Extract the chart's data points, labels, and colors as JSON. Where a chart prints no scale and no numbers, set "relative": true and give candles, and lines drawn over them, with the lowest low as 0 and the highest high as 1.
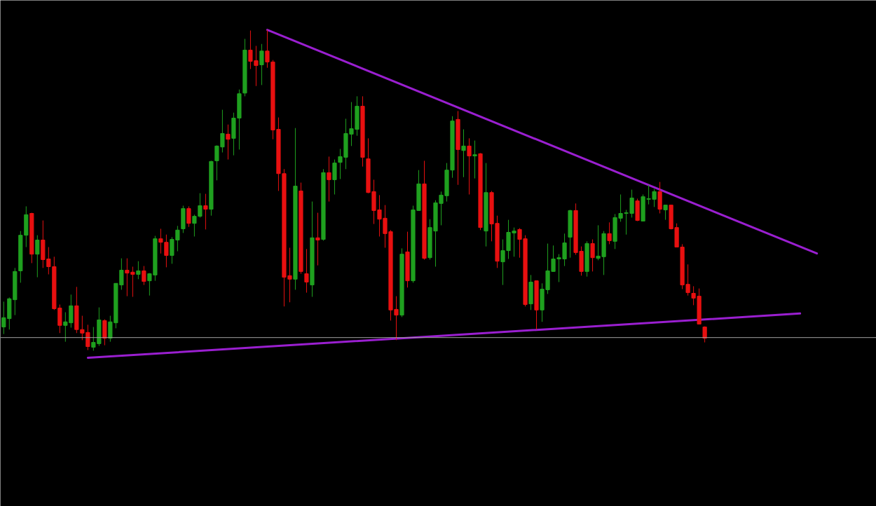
{
  "chart_data": {
    "type": "candlestick",
    "relative": true,
    "tick_labels": false,
    "categories": [
      null,
      null,
      null,
      null,
      null,
      null,
      null,
      null,
      null,
      null,
      null,
      null,
      null,
      null,
      null,
      null,
      null,
      null,
      null,
      null,
      null,
      null,
      null,
      null,
      null,
      null,
      null,
      null,
      null,
      null,
      null,
      null,
      null,
      null,
      null,
      null,
      null,
      null,
      null,
      null,
      null,
      null,
      null,
      null,
      null,
      null,
      null,
      null,
      null,
      null,
      null,
      null,
      null,
      null,
      null,
      null,
      null,
      null,
      null,
      null,
      null,
      null,
      null,
      null,
      null,
      null,
      null,
      null,
      null,
      null,
      null,
      null,
      null,
      null,
      null,
      null,
      null,
      null,
      null,
      null,
      null,
      null,
      null,
      null,
      null,
      null,
      null,
      null,
      null,
      null,
      null,
      null,
      null,
      null,
      null,
      null,
      null,
      null,
      null,
      null,
      null,
      null,
      null,
      null,
      null,
      null,
      null,
      null,
      null,
      null,
      null,
      null,
      null,
      null,
      null,
      null,
      null,
      null,
      null,
      null,
      null,
      null,
      null,
      null,
      null,
      null,
      null,
      null,
      null,
      null,
      null,
      null,
      null,
      null,
      null,
      null,
      null,
      null,
      null,
      null,
      null,
      null,
      null,
      null,
      null,
      null,
      null,
      null,
      null,
      null,
      null,
      null,
      null,
      null,
      null,
      null
    ],
    "ohlc": [
      [
        0.074,
        0.153,
        0.052,
        0.103
      ],
      [
        0.1,
        0.166,
        0.066,
        0.162
      ],
      [
        0.159,
        0.258,
        0.111,
        0.247
      ],
      [
        0.249,
        0.373,
        0.212,
        0.36
      ],
      [
        0.36,
        0.45,
        0.323,
        0.424
      ],
      [
        0.428,
        0.43,
        0.273,
        0.301
      ],
      [
        0.301,
        0.36,
        0.229,
        0.345
      ],
      [
        0.345,
        0.406,
        0.258,
        0.284
      ],
      [
        0.286,
        0.323,
        0.238,
        0.262
      ],
      [
        0.262,
        0.293,
        0.127,
        0.131
      ],
      [
        0.133,
        0.144,
        0.055,
        0.079
      ],
      [
        0.079,
        0.12,
        0.028,
        0.09
      ],
      [
        0.087,
        0.175,
        0.072,
        0.14
      ],
      [
        0.14,
        0.199,
        0.055,
        0.066
      ],
      [
        0.066,
        0.109,
        0.033,
        0.055
      ],
      [
        0.057,
        0.081,
        0.002,
        0.013
      ],
      [
        0.011,
        0.074,
        0.0,
        0.026
      ],
      [
        0.022,
        0.135,
        0.015,
        0.096
      ],
      [
        0.094,
        0.098,
        0.017,
        0.039
      ],
      [
        0.039,
        0.109,
        0.028,
        0.09
      ],
      [
        0.087,
        0.21,
        0.07,
        0.21
      ],
      [
        0.205,
        0.288,
        0.19,
        0.251
      ],
      [
        0.251,
        0.288,
        0.17,
        0.242
      ],
      [
        0.245,
        0.262,
        0.168,
        0.238
      ],
      [
        0.238,
        0.279,
        0.223,
        0.249
      ],
      [
        0.249,
        0.264,
        0.205,
        0.216
      ],
      [
        0.218,
        0.242,
        0.172,
        0.24
      ],
      [
        0.236,
        0.358,
        0.218,
        0.349
      ],
      [
        0.349,
        0.38,
        0.303,
        0.338
      ],
      [
        0.338,
        0.362,
        0.26,
        0.297
      ],
      [
        0.297,
        0.354,
        0.271,
        0.347
      ],
      [
        0.345,
        0.389,
        0.31,
        0.376
      ],
      [
        0.38,
        0.452,
        0.367,
        0.443
      ],
      [
        0.443,
        0.45,
        0.386,
        0.397
      ],
      [
        0.397,
        0.424,
        0.356,
        0.419
      ],
      [
        0.419,
        0.491,
        0.415,
        0.452
      ],
      [
        0.452,
        0.489,
        0.378,
        0.441
      ],
      [
        0.441,
        0.592,
        0.421,
        0.59
      ],
      [
        0.592,
        0.64,
        0.531,
        0.638
      ],
      [
        0.635,
        0.751,
        0.618,
        0.677
      ],
      [
        0.675,
        0.705,
        0.596,
        0.659
      ],
      [
        0.662,
        0.742,
        0.609,
        0.725
      ],
      [
        0.725,
        0.814,
        0.627,
        0.801
      ],
      [
        0.803,
        0.972,
        0.793,
        0.937
      ],
      [
        0.937,
        0.998,
        0.878,
        0.902
      ],
      [
        0.904,
        0.95,
        0.825,
        0.889
      ],
      [
        0.891,
        0.956,
        0.828,
        0.934
      ],
      [
        0.934,
        1.0,
        0.882,
        0.9
      ],
      [
        0.9,
        0.906,
        0.659,
        0.688
      ],
      [
        0.69,
        0.727,
        0.498,
        0.552
      ],
      [
        0.552,
        0.566,
        0.138,
        0.229
      ],
      [
        0.234,
        0.321,
        0.151,
        0.223
      ],
      [
        0.223,
        0.694,
        0.19,
        0.513
      ],
      [
        0.498,
        0.524,
        0.24,
        0.247
      ],
      [
        0.24,
        0.317,
        0.181,
        0.214
      ],
      [
        0.205,
        0.465,
        0.168,
        0.352
      ],
      [
        0.352,
        0.43,
        0.266,
        0.345
      ],
      [
        0.347,
        0.566,
        0.343,
        0.555
      ],
      [
        0.555,
        0.605,
        0.465,
        0.533
      ],
      [
        0.533,
        0.596,
        0.487,
        0.585
      ],
      [
        0.587,
        0.629,
        0.535,
        0.605
      ],
      [
        0.603,
        0.723,
        0.566,
        0.677
      ],
      [
        0.675,
        0.775,
        0.638,
        0.692
      ],
      [
        0.69,
        0.793,
        0.67,
        0.762
      ],
      [
        0.762,
        0.793,
        0.574,
        0.603
      ],
      [
        0.598,
        0.662,
        0.491,
        0.493
      ],
      [
        0.496,
        0.533,
        0.395,
        0.437
      ],
      [
        0.439,
        0.485,
        0.356,
        0.41
      ],
      [
        0.413,
        0.454,
        0.321,
        0.365
      ],
      [
        0.371,
        0.376,
        0.094,
        0.127
      ],
      [
        0.129,
        0.17,
        0.033,
        0.111
      ],
      [
        0.111,
        0.319,
        0.105,
        0.301
      ],
      [
        0.308,
        0.371,
        0.197,
        0.218
      ],
      [
        0.218,
        0.452,
        0.212,
        0.439
      ],
      [
        0.437,
        0.563,
        0.437,
        0.52
      ],
      [
        0.52,
        0.592,
        0.284,
        0.288
      ],
      [
        0.29,
        0.41,
        0.284,
        0.384
      ],
      [
        0.373,
        0.469,
        0.262,
        0.461
      ],
      [
        0.459,
        0.496,
        0.391,
        0.485
      ],
      [
        0.483,
        0.585,
        0.465,
        0.563
      ],
      [
        0.563,
        0.731,
        0.539,
        0.716
      ],
      [
        0.721,
        0.747,
        0.517,
        0.627
      ],
      [
        0.624,
        0.69,
        0.541,
        0.638
      ],
      [
        0.638,
        0.662,
        0.487,
        0.607
      ],
      [
        0.607,
        0.655,
        0.537,
        0.611
      ],
      [
        0.614,
        0.616,
        0.376,
        0.384
      ],
      [
        0.373,
        0.585,
        0.325,
        0.493
      ],
      [
        0.493,
        0.498,
        0.341,
        0.395
      ],
      [
        0.397,
        0.421,
        0.258,
        0.279
      ],
      [
        0.277,
        0.347,
        0.205,
        0.312
      ],
      [
        0.312,
        0.408,
        0.286,
        0.369
      ],
      [
        0.367,
        0.384,
        0.293,
        0.373
      ],
      [
        0.378,
        0.382,
        0.29,
        0.347
      ],
      [
        0.349,
        0.36,
        0.138,
        0.144
      ],
      [
        0.146,
        0.236,
        0.127,
        0.214
      ],
      [
        0.218,
        0.218,
        0.066,
        0.127
      ],
      [
        0.127,
        0.21,
        0.09,
        0.192
      ],
      [
        0.19,
        0.334,
        0.177,
        0.249
      ],
      [
        0.247,
        0.328,
        0.247,
        0.286
      ],
      [
        0.286,
        0.301,
        0.214,
        0.29
      ],
      [
        0.286,
        0.365,
        0.264,
        0.336
      ],
      [
        0.354,
        0.439,
        0.29,
        0.437
      ],
      [
        0.437,
        0.459,
        0.299,
        0.306
      ],
      [
        0.31,
        0.325,
        0.234,
        0.247
      ],
      [
        0.247,
        0.341,
        0.231,
        0.334
      ],
      [
        0.334,
        0.347,
        0.247,
        0.29
      ],
      [
        0.288,
        0.391,
        0.282,
        0.295
      ],
      [
        0.293,
        0.373,
        0.236,
        0.365
      ],
      [
        0.365,
        0.4,
        0.332,
        0.343
      ],
      [
        0.341,
        0.426,
        0.317,
        0.415
      ],
      [
        0.413,
        0.487,
        0.402,
        0.428
      ],
      [
        0.428,
        0.439,
        0.362,
        0.43
      ],
      [
        0.428,
        0.502,
        0.415,
        0.476
      ],
      [
        0.467,
        0.474,
        0.404,
        0.406
      ],
      [
        0.404,
        0.487,
        0.404,
        0.48
      ],
      [
        0.472,
        0.517,
        0.456,
        0.474
      ],
      [
        0.472,
        0.504,
        0.448,
        0.496
      ],
      [
        0.496,
        0.526,
        0.428,
        0.441
      ],
      [
        0.439,
        0.454,
        0.408,
        0.454
      ],
      [
        0.454,
        0.454,
        0.378,
        0.38
      ],
      [
        0.384,
        0.397,
        0.323,
        0.323
      ],
      [
        0.323,
        0.332,
        0.192,
        0.205
      ],
      [
        0.207,
        0.269,
        0.172,
        0.181
      ],
      [
        0.179,
        0.201,
        0.142,
        0.164
      ],
      [
        0.17,
        0.194,
        0.083,
        0.083
      ],
      [
        0.074,
        0.076,
        0.026,
        0.039
      ],
      null,
      null,
      null,
      null,
      null,
      null,
      null,
      null,
      null,
      null,
      null,
      null,
      null,
      null,
      null,
      null,
      null,
      null,
      null,
      null,
      null,
      null,
      null,
      null,
      null,
      null,
      null,
      null,
      null,
      null
    ],
    "colors": [
      "#1fa01f",
      "#1fa01f",
      "#1fa01f",
      "#1fa01f",
      "#1fa01f",
      "#e81010",
      "#1fa01f",
      "#e81010",
      "#e81010",
      "#e81010",
      "#e81010",
      "#1fa01f",
      "#1fa01f",
      "#e81010",
      "#e81010",
      "#e81010",
      "#1fa01f",
      "#1fa01f",
      "#e81010",
      "#1fa01f",
      "#1fa01f",
      "#1fa01f",
      "#e81010",
      "#e81010",
      "#1fa01f",
      "#e81010",
      "#1fa01f",
      "#1fa01f",
      "#e81010",
      "#e81010",
      "#1fa01f",
      "#1fa01f",
      "#1fa01f",
      "#e81010",
      "#1fa01f",
      "#1fa01f",
      "#e81010",
      "#1fa01f",
      "#1fa01f",
      "#1fa01f",
      "#e81010",
      "#1fa01f",
      "#1fa01f",
      "#1fa01f",
      "#e81010",
      "#e81010",
      "#1fa01f",
      "#e81010",
      "#e81010",
      "#e81010",
      "#e81010",
      "#e81010",
      "#1fa01f",
      "#e81010",
      "#e81010",
      "#1fa01f",
      "#e81010",
      "#1fa01f",
      "#e81010",
      "#1fa01f",
      "#1fa01f",
      "#1fa01f",
      "#1fa01f",
      "#1fa01f",
      "#e81010",
      "#e81010",
      "#e81010",
      "#e81010",
      "#e81010",
      "#e81010",
      "#e81010",
      "#1fa01f",
      "#e81010",
      "#1fa01f",
      "#1fa01f",
      "#e81010",
      "#1fa01f",
      "#1fa01f",
      "#1fa01f",
      "#1fa01f",
      "#1fa01f",
      "#e81010",
      "#1fa01f",
      "#e81010",
      "#1fa01f",
      "#e81010",
      "#1fa01f",
      "#e81010",
      "#e81010",
      "#1fa01f",
      "#1fa01f",
      "#1fa01f",
      "#e81010",
      "#e81010",
      "#1fa01f",
      "#e81010",
      "#1fa01f",
      "#1fa01f",
      "#1fa01f",
      "#1fa01f",
      "#1fa01f",
      "#1fa01f",
      "#e81010",
      "#e81010",
      "#1fa01f",
      "#e81010",
      "#1fa01f",
      "#1fa01f",
      "#e81010",
      "#1fa01f",
      "#1fa01f",
      "#1fa01f",
      "#1fa01f",
      "#e81010",
      "#1fa01f",
      "#1fa01f",
      "#1fa01f",
      "#e81010",
      "#1fa01f",
      "#e81010",
      "#e81010",
      "#e81010",
      "#e81010",
      "#e81010",
      "#e81010",
      "#e81010",
      null,
      null,
      null,
      null,
      null,
      null,
      null,
      null,
      null,
      null,
      null,
      null,
      null,
      null,
      null,
      null,
      null,
      null,
      null,
      null,
      null,
      null,
      null,
      null,
      null,
      null,
      null,
      null,
      null,
      null
    ],
    "series": [
      {
        "type": "line",
        "color": "#9a1fd0",
        "values": [
          null,
          null,
          null,
          null,
          null,
          null,
          null,
          null,
          null,
          null,
          null,
          null,
          null,
          null,
          null,
          null,
          null,
          null,
          null,
          null,
          null,
          null,
          null,
          null,
          null,
          null,
          null,
          null,
          null,
          null,
          null,
          null,
          null,
          null,
          null,
          null,
          null,
          null,
          null,
          null,
          null,
          null,
          null,
          null,
          null,
          null,
          null,
          1.0,
          null,
          null,
          null,
          null,
          null,
          null,
          null,
          null,
          null,
          null,
          null,
          null,
          null,
          null,
          null,
          null,
          null,
          null,
          null,
          null,
          null,
          null,
          null,
          null,
          null,
          null,
          null,
          null,
          null,
          null,
          null,
          null,
          null,
          null,
          null,
          null,
          null,
          null,
          null,
          null,
          null,
          null,
          null,
          null,
          null,
          null,
          null,
          null,
          null,
          null,
          null,
          null,
          null,
          null,
          null,
          null,
          null,
          null,
          null,
          null,
          null,
          null,
          null,
          null,
          null,
          null,
          null,
          null,
          null,
          null,
          null,
          null,
          null,
          null,
          null,
          null,
          null,
          null,
          null,
          null,
          null,
          null,
          null,
          null,
          null,
          null,
          null,
          null,
          null,
          null,
          null,
          null,
          null,
          null,
          null,
          null,
          null,
          0.303,
          null,
          null,
          null,
          null,
          null,
          null,
          null,
          null,
          null,
          null
        ]
      },
      {
        "type": "line",
        "color": "#9a1fd0",
        "values": [
          null,
          null,
          null,
          null,
          null,
          null,
          null,
          null,
          null,
          null,
          null,
          null,
          null,
          null,
          null,
          -0.022,
          null,
          null,
          null,
          null,
          null,
          null,
          null,
          null,
          null,
          null,
          null,
          null,
          null,
          null,
          null,
          null,
          null,
          null,
          null,
          null,
          null,
          null,
          null,
          null,
          null,
          null,
          null,
          null,
          null,
          null,
          null,
          null,
          null,
          null,
          null,
          null,
          null,
          null,
          null,
          null,
          null,
          null,
          null,
          null,
          null,
          null,
          null,
          null,
          null,
          null,
          null,
          null,
          null,
          null,
          null,
          null,
          null,
          null,
          null,
          null,
          null,
          null,
          null,
          null,
          null,
          null,
          null,
          null,
          null,
          null,
          null,
          null,
          null,
          null,
          null,
          null,
          null,
          null,
          null,
          null,
          null,
          null,
          null,
          null,
          null,
          null,
          null,
          null,
          null,
          null,
          null,
          null,
          null,
          null,
          null,
          null,
          null,
          null,
          null,
          null,
          null,
          null,
          null,
          null,
          null,
          null,
          null,
          null,
          null,
          null,
          null,
          null,
          null,
          null,
          null,
          null,
          null,
          null,
          null,
          null,
          null,
          null,
          null,
          null,
          null,
          null,
          0.116,
          null,
          null,
          null,
          null,
          null,
          null,
          null,
          null,
          null,
          null,
          null,
          null,
          null
        ]
      }
    ],
    "ref_lines": [
      {
        "axis": "y",
        "value": 0.041,
        "color": "#a0a0a0"
      }
    ]
  }
}
